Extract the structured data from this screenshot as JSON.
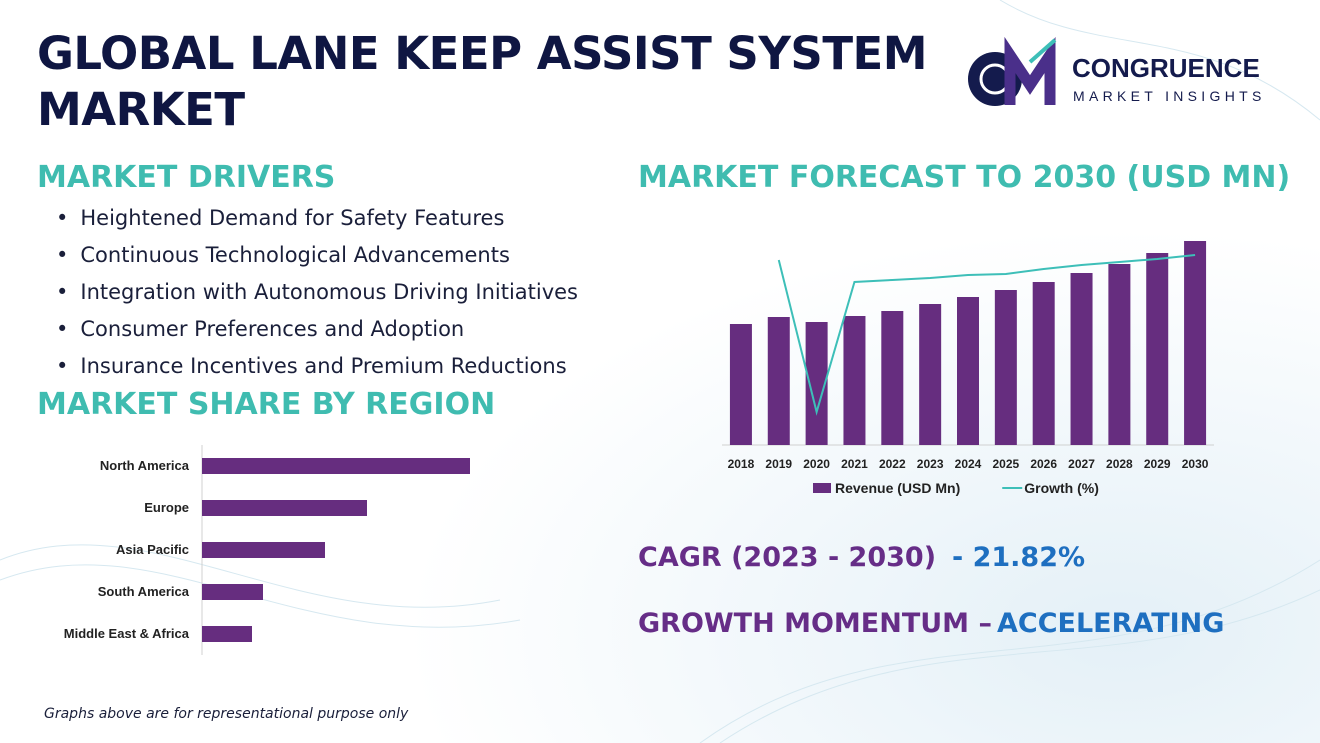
{
  "header": {
    "title": "GLOBAL LANE KEEP ASSIST SYSTEM MARKET",
    "logo": {
      "name": "CONGRUENCE",
      "tagline": "MARKET INSIGHTS"
    }
  },
  "drivers": {
    "heading": "MARKET DRIVERS",
    "items": [
      "Heightened Demand for Safety Features",
      "Continuous Technological Advancements",
      "Integration with Autonomous Driving Initiatives",
      "Consumer Preferences and Adoption",
      "Insurance Incentives and Premium Reductions"
    ]
  },
  "region_heading": "MARKET SHARE BY REGION",
  "forecast_heading": "MARKET FORECAST TO 2030 (USD MN)",
  "chart_data": [
    {
      "type": "hbar",
      "categories": [
        "North America",
        "Europe",
        "Asia Pacific",
        "South America",
        "Middle East & Africa"
      ],
      "values": [
        268,
        165,
        123,
        61,
        50
      ],
      "color": "#662d7f",
      "xlim": [
        0,
        300
      ]
    },
    {
      "type": "combo",
      "categories": [
        "2018",
        "2019",
        "2020",
        "2021",
        "2022",
        "2023",
        "2024",
        "2025",
        "2026",
        "2027",
        "2028",
        "2029",
        "2030"
      ],
      "series": [
        {
          "name": "Revenue (USD Mn)",
          "color": "#662d7f",
          "values": [
            121,
            128,
            123,
            129,
            134,
            141,
            148,
            155,
            163,
            172,
            181,
            192,
            204
          ]
        },
        {
          "name": "Growth (%)",
          "color": "#3dbfb8",
          "axis": "y2",
          "values": [
            null,
            185,
            33,
            163,
            165,
            167,
            170,
            171,
            176,
            180,
            183,
            186,
            190
          ]
        }
      ],
      "ylim": [
        0,
        210
      ],
      "y2lim": [
        0,
        210
      ],
      "legend": "bottom"
    }
  ],
  "stats": {
    "cagr_label": "CAGR (2023 - 2030)",
    "cagr_value": "- 21.82%",
    "momentum_label": "GROWTH MOMENTUM –",
    "momentum_value": "ACCELERATING"
  },
  "footnote": "Graphs above are for representational purpose only"
}
